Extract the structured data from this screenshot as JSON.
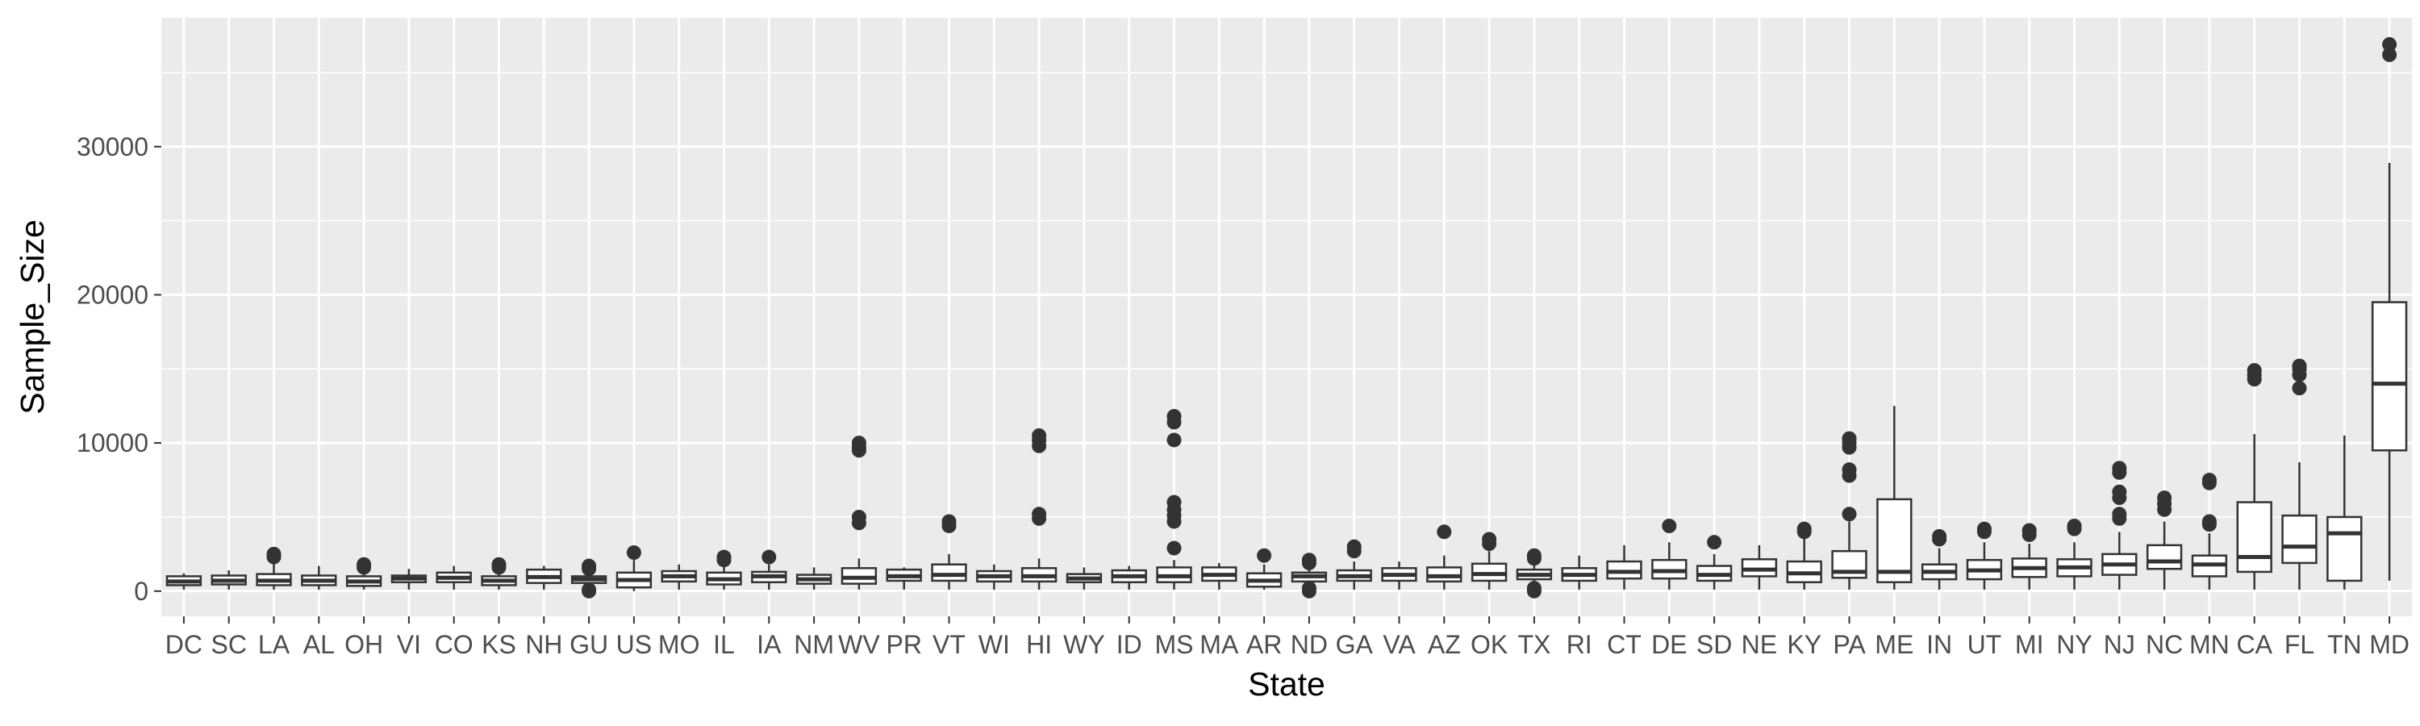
{
  "chart_data": {
    "type": "boxplot",
    "title": "",
    "xlabel": "State",
    "ylabel": "Sample_Size",
    "ylim": [
      -1700,
      38700
    ],
    "yticks": [
      0,
      10000,
      20000,
      30000
    ],
    "yticklabels": [
      "0",
      "10000",
      "20000",
      "30000"
    ],
    "grid": true,
    "legend": "none",
    "colors": {
      "panel": "#ebebeb",
      "grid": "#ffffff",
      "box_fill": "#ffffff",
      "box_line": "#333333",
      "outlier": "#333333",
      "tick_text": "#4d4d4d"
    },
    "categories": [
      "DC",
      "SC",
      "LA",
      "AL",
      "OH",
      "VI",
      "CO",
      "KS",
      "NH",
      "GU",
      "US",
      "MO",
      "IL",
      "IA",
      "NM",
      "WV",
      "PR",
      "VT",
      "WI",
      "HI",
      "WY",
      "ID",
      "MS",
      "MA",
      "AR",
      "ND",
      "GA",
      "VA",
      "AZ",
      "OK",
      "TX",
      "RI",
      "CT",
      "DE",
      "SD",
      "NE",
      "KY",
      "PA",
      "ME",
      "IN",
      "UT",
      "MI",
      "NY",
      "NJ",
      "NC",
      "MN",
      "CA",
      "FL",
      "TN",
      "MD"
    ],
    "series": [
      {
        "state": "DC",
        "min": 100,
        "q1": 400,
        "median": 650,
        "q3": 1000,
        "max": 1200,
        "outliers": []
      },
      {
        "state": "SC",
        "min": 100,
        "q1": 450,
        "median": 700,
        "q3": 1050,
        "max": 1400,
        "outliers": []
      },
      {
        "state": "LA",
        "min": 100,
        "q1": 400,
        "median": 700,
        "q3": 1150,
        "max": 1900,
        "outliers": [
          2300,
          2500
        ]
      },
      {
        "state": "AL",
        "min": 100,
        "q1": 400,
        "median": 700,
        "q3": 1050,
        "max": 1700,
        "outliers": []
      },
      {
        "state": "OH",
        "min": 100,
        "q1": 350,
        "median": 650,
        "q3": 1000,
        "max": 1500,
        "outliers": [
          1600,
          1800
        ]
      },
      {
        "state": "VI",
        "min": 100,
        "q1": 600,
        "median": 850,
        "q3": 1050,
        "max": 1500,
        "outliers": []
      },
      {
        "state": "CO",
        "min": 100,
        "q1": 600,
        "median": 900,
        "q3": 1250,
        "max": 1700,
        "outliers": []
      },
      {
        "state": "KS",
        "min": 100,
        "q1": 400,
        "median": 700,
        "q3": 1000,
        "max": 1400,
        "outliers": [
          1600,
          1800
        ]
      },
      {
        "state": "NH",
        "min": 100,
        "q1": 550,
        "median": 950,
        "q3": 1450,
        "max": 1700,
        "outliers": []
      },
      {
        "state": "GU",
        "min": 100,
        "q1": 550,
        "median": 800,
        "q3": 1000,
        "max": 1300,
        "outliers": [
          0,
          100,
          1500,
          1700
        ]
      },
      {
        "state": "US",
        "min": 0,
        "q1": 250,
        "median": 750,
        "q3": 1250,
        "max": 2100,
        "outliers": [
          2600
        ]
      },
      {
        "state": "MO",
        "min": 100,
        "q1": 650,
        "median": 1000,
        "q3": 1350,
        "max": 1800,
        "outliers": []
      },
      {
        "state": "IL",
        "min": 100,
        "q1": 450,
        "median": 800,
        "q3": 1250,
        "max": 1900,
        "outliers": [
          2100,
          2300
        ]
      },
      {
        "state": "IA",
        "min": 100,
        "q1": 600,
        "median": 1000,
        "q3": 1300,
        "max": 1800,
        "outliers": [
          2300
        ]
      },
      {
        "state": "NM",
        "min": 100,
        "q1": 500,
        "median": 800,
        "q3": 1100,
        "max": 1600,
        "outliers": []
      },
      {
        "state": "WV",
        "min": 100,
        "q1": 500,
        "median": 900,
        "q3": 1550,
        "max": 2200,
        "outliers": [
          4600,
          5000,
          9500,
          9700,
          10000
        ]
      },
      {
        "state": "PR",
        "min": 100,
        "q1": 700,
        "median": 1000,
        "q3": 1450,
        "max": 1600,
        "outliers": []
      },
      {
        "state": "VT",
        "min": 100,
        "q1": 700,
        "median": 1100,
        "q3": 1800,
        "max": 2500,
        "outliers": [
          4400,
          4700
        ]
      },
      {
        "state": "WI",
        "min": 100,
        "q1": 650,
        "median": 1000,
        "q3": 1350,
        "max": 1800,
        "outliers": []
      },
      {
        "state": "HI",
        "min": 100,
        "q1": 650,
        "median": 1000,
        "q3": 1550,
        "max": 2200,
        "outliers": [
          4900,
          5200,
          9800,
          10200,
          10500
        ]
      },
      {
        "state": "WY",
        "min": 100,
        "q1": 600,
        "median": 850,
        "q3": 1150,
        "max": 1600,
        "outliers": []
      },
      {
        "state": "ID",
        "min": 100,
        "q1": 600,
        "median": 1000,
        "q3": 1400,
        "max": 1700,
        "outliers": []
      },
      {
        "state": "MS",
        "min": 100,
        "q1": 600,
        "median": 1000,
        "q3": 1600,
        "max": 2100,
        "outliers": [
          2900,
          4700,
          5100,
          5500,
          6000,
          10200,
          11400,
          11800
        ]
      },
      {
        "state": "MA",
        "min": 100,
        "q1": 700,
        "median": 1100,
        "q3": 1600,
        "max": 1900,
        "outliers": []
      },
      {
        "state": "AR",
        "min": 100,
        "q1": 300,
        "median": 700,
        "q3": 1200,
        "max": 1800,
        "outliers": [
          2400
        ]
      },
      {
        "state": "ND",
        "min": 100,
        "q1": 650,
        "median": 1000,
        "q3": 1250,
        "max": 1700,
        "outliers": [
          0,
          200,
          1900,
          2100
        ]
      },
      {
        "state": "GA",
        "min": 100,
        "q1": 700,
        "median": 1000,
        "q3": 1400,
        "max": 2000,
        "outliers": [
          2700,
          3000
        ]
      },
      {
        "state": "VA",
        "min": 100,
        "q1": 700,
        "median": 1100,
        "q3": 1550,
        "max": 2000,
        "outliers": []
      },
      {
        "state": "AZ",
        "min": 100,
        "q1": 650,
        "median": 1000,
        "q3": 1600,
        "max": 2400,
        "outliers": [
          4000
        ]
      },
      {
        "state": "OK",
        "min": 100,
        "q1": 700,
        "median": 1150,
        "q3": 1850,
        "max": 2700,
        "outliers": [
          3200,
          3500
        ]
      },
      {
        "state": "TX",
        "min": 100,
        "q1": 800,
        "median": 1100,
        "q3": 1450,
        "max": 1900,
        "outliers": [
          0,
          200,
          2200,
          2400
        ]
      },
      {
        "state": "RI",
        "min": 100,
        "q1": 700,
        "median": 1100,
        "q3": 1550,
        "max": 2400,
        "outliers": []
      },
      {
        "state": "CT",
        "min": 100,
        "q1": 850,
        "median": 1300,
        "q3": 2000,
        "max": 3100,
        "outliers": []
      },
      {
        "state": "DE",
        "min": 100,
        "q1": 850,
        "median": 1350,
        "q3": 2100,
        "max": 3300,
        "outliers": [
          4400
        ]
      },
      {
        "state": "SD",
        "min": 100,
        "q1": 700,
        "median": 1100,
        "q3": 1700,
        "max": 2500,
        "outliers": [
          3300
        ]
      },
      {
        "state": "NE",
        "min": 100,
        "q1": 1000,
        "median": 1450,
        "q3": 2150,
        "max": 3100,
        "outliers": []
      },
      {
        "state": "KY",
        "min": 100,
        "q1": 600,
        "median": 1200,
        "q3": 2000,
        "max": 3600,
        "outliers": [
          4000,
          4200
        ]
      },
      {
        "state": "PA",
        "min": 100,
        "q1": 900,
        "median": 1300,
        "q3": 2700,
        "max": 4700,
        "outliers": [
          5200,
          7800,
          8200,
          9700,
          10000,
          10300
        ]
      },
      {
        "state": "ME",
        "min": 100,
        "q1": 600,
        "median": 1300,
        "q3": 6200,
        "max": 12500,
        "outliers": []
      },
      {
        "state": "IN",
        "min": 100,
        "q1": 800,
        "median": 1300,
        "q3": 1800,
        "max": 2900,
        "outliers": [
          3500,
          3700
        ]
      },
      {
        "state": "UT",
        "min": 100,
        "q1": 800,
        "median": 1400,
        "q3": 2100,
        "max": 3300,
        "outliers": [
          4000,
          4200
        ]
      },
      {
        "state": "MI",
        "min": 100,
        "q1": 950,
        "median": 1550,
        "q3": 2200,
        "max": 3200,
        "outliers": [
          3800,
          4100
        ]
      },
      {
        "state": "NY",
        "min": 100,
        "q1": 1000,
        "median": 1600,
        "q3": 2150,
        "max": 3300,
        "outliers": [
          4200,
          4400
        ]
      },
      {
        "state": "NJ",
        "min": 100,
        "q1": 1100,
        "median": 1800,
        "q3": 2500,
        "max": 4000,
        "outliers": [
          4900,
          5200,
          6300,
          6700,
          8000,
          8300
        ]
      },
      {
        "state": "NC",
        "min": 100,
        "q1": 1500,
        "median": 2000,
        "q3": 3100,
        "max": 4700,
        "outliers": [
          5500,
          5900,
          6300
        ]
      },
      {
        "state": "MN",
        "min": 100,
        "q1": 1000,
        "median": 1800,
        "q3": 2400,
        "max": 3900,
        "outliers": [
          4500,
          4700,
          7300,
          7500
        ]
      },
      {
        "state": "CA",
        "min": 100,
        "q1": 1300,
        "median": 2300,
        "q3": 6000,
        "max": 10600,
        "outliers": [
          14300,
          14600,
          14900
        ]
      },
      {
        "state": "FL",
        "min": 100,
        "q1": 1900,
        "median": 3000,
        "q3": 5100,
        "max": 8700,
        "outliers": [
          13700,
          14600,
          15000,
          15200
        ]
      },
      {
        "state": "TN",
        "min": 100,
        "q1": 700,
        "median": 3900,
        "q3": 5000,
        "max": 10500,
        "outliers": []
      },
      {
        "state": "MD",
        "min": 700,
        "q1": 9500,
        "median": 14000,
        "q3": 19500,
        "max": 28900,
        "outliers": [
          36200,
          36900
        ]
      }
    ]
  }
}
